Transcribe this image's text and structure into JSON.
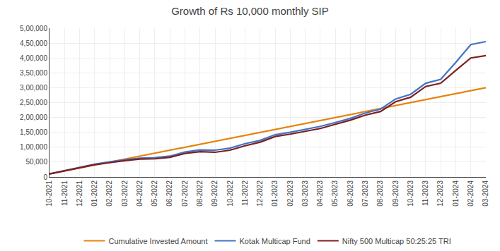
{
  "chart_data": {
    "type": "line",
    "title": "Growth of Rs 10,000 monthly SIP",
    "categories": [
      "10-2021",
      "11-2021",
      "12-2021",
      "01-2022",
      "02-2022",
      "03-2022",
      "04-2022",
      "05-2022",
      "06-2022",
      "07-2022",
      "08-2022",
      "09-2022",
      "10-2022",
      "11-2022",
      "12-2022",
      "01-2023",
      "02-2023",
      "03-2023",
      "04-2023",
      "05-2023",
      "06-2023",
      "07-2023",
      "08-2023",
      "09-2023",
      "10-2023",
      "11-2023",
      "12-2023",
      "01-2024",
      "02-2024",
      "03-2024"
    ],
    "series": [
      {
        "name": "Cumulative Invested Amount",
        "color": "#E8820C",
        "values": [
          10000,
          20000,
          30000,
          40000,
          50000,
          60000,
          70000,
          80000,
          90000,
          100000,
          110000,
          120000,
          130000,
          140000,
          150000,
          160000,
          170000,
          180000,
          190000,
          200000,
          210000,
          220000,
          230000,
          240000,
          250000,
          260000,
          270000,
          280000,
          290000,
          300000
        ]
      },
      {
        "name": "Kotak Multicap Fund",
        "color": "#4472C4",
        "values": [
          10500,
          21000,
          31500,
          43000,
          51000,
          58000,
          63000,
          65000,
          70000,
          84000,
          91000,
          90000,
          97000,
          112000,
          123000,
          142000,
          150000,
          160000,
          170000,
          183000,
          197000,
          215000,
          228000,
          262000,
          278000,
          315000,
          328000,
          385000,
          445000,
          455000
        ]
      },
      {
        "name": "Nifty 500 Multicap 50:25:25 TRI",
        "color": "#7B2020",
        "values": [
          10200,
          20500,
          30000,
          41000,
          48000,
          55000,
          60000,
          61000,
          66000,
          79000,
          85000,
          83000,
          90000,
          105000,
          117000,
          136000,
          144000,
          154000,
          163000,
          177000,
          191000,
          208000,
          220000,
          253000,
          268000,
          304000,
          315000,
          358000,
          400000,
          408000
        ]
      }
    ],
    "ylim": [
      0,
      500000
    ],
    "yticks": [
      0,
      {
        "value": 50000,
        "label": "50,000"
      },
      {
        "value": 100000,
        "label": "1,00,000"
      },
      {
        "value": 150000,
        "label": "1,50,000"
      },
      {
        "value": 200000,
        "label": "2,00,000"
      },
      {
        "value": 250000,
        "label": "2,50,000"
      },
      {
        "value": 300000,
        "label": "3,00,000"
      },
      {
        "value": 350000,
        "label": "3,50,000"
      },
      {
        "value": 400000,
        "label": "4,00,000"
      },
      {
        "value": 450000,
        "label": "4,50,000"
      },
      {
        "value": 500000,
        "label": "5,00,000"
      }
    ],
    "grid": true,
    "legend": "bottom"
  }
}
